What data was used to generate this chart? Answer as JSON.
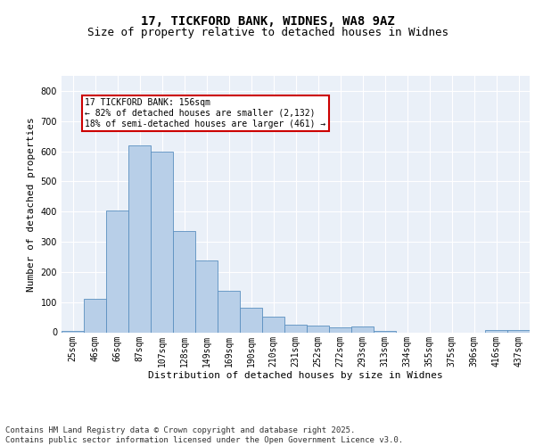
{
  "title1": "17, TICKFORD BANK, WIDNES, WA8 9AZ",
  "title2": "Size of property relative to detached houses in Widnes",
  "xlabel": "Distribution of detached houses by size in Widnes",
  "ylabel": "Number of detached properties",
  "categories": [
    "25sqm",
    "46sqm",
    "66sqm",
    "87sqm",
    "107sqm",
    "128sqm",
    "149sqm",
    "169sqm",
    "190sqm",
    "210sqm",
    "231sqm",
    "252sqm",
    "272sqm",
    "293sqm",
    "313sqm",
    "334sqm",
    "355sqm",
    "375sqm",
    "396sqm",
    "416sqm",
    "437sqm"
  ],
  "values": [
    5,
    110,
    405,
    620,
    598,
    335,
    237,
    137,
    80,
    53,
    25,
    22,
    17,
    18,
    5,
    0,
    0,
    0,
    0,
    8,
    8
  ],
  "bar_color": "#b8cfe8",
  "bar_edge_color": "#5a8fc0",
  "annotation_text": "17 TICKFORD BANK: 156sqm\n← 82% of detached houses are smaller (2,132)\n18% of semi-detached houses are larger (461) →",
  "annotation_box_color": "#ffffff",
  "annotation_box_edge": "#cc0000",
  "ylim": [
    0,
    850
  ],
  "yticks": [
    0,
    100,
    200,
    300,
    400,
    500,
    600,
    700,
    800
  ],
  "background_color": "#eaf0f8",
  "grid_color": "#ffffff",
  "footer": "Contains HM Land Registry data © Crown copyright and database right 2025.\nContains public sector information licensed under the Open Government Licence v3.0.",
  "title_fontsize": 10,
  "subtitle_fontsize": 9,
  "axis_label_fontsize": 8,
  "tick_fontsize": 7,
  "annotation_fontsize": 7,
  "footer_fontsize": 6.5
}
